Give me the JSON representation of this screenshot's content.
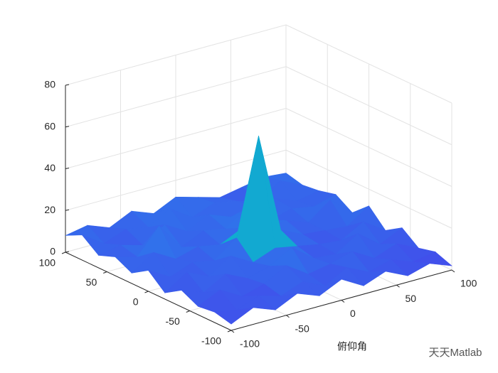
{
  "chart_data": {
    "type": "surface",
    "xlabel": "俯仰角",
    "watermark": "天天Matlab",
    "x": [
      -100,
      -80,
      -60,
      -40,
      -20,
      0,
      20,
      40,
      60,
      80,
      100
    ],
    "y": [
      -100,
      -80,
      -60,
      -40,
      -20,
      0,
      20,
      40,
      60,
      80,
      100
    ],
    "z": [
      [
        3,
        8,
        4,
        9,
        5,
        10,
        4,
        8,
        3,
        6,
        2
      ],
      [
        5,
        3,
        7,
        4,
        8,
        3,
        9,
        4,
        7,
        3,
        5
      ],
      [
        4,
        9,
        3,
        6,
        12,
        5,
        7,
        10,
        4,
        8,
        3
      ],
      [
        8,
        4,
        10,
        5,
        8,
        14,
        6,
        5,
        12,
        4,
        9
      ],
      [
        3,
        10,
        5,
        12,
        6,
        10,
        8,
        6,
        5,
        11,
        4
      ],
      [
        10,
        4,
        8,
        6,
        14,
        60,
        12,
        7,
        6,
        5,
        12
      ],
      [
        5,
        12,
        6,
        9,
        7,
        12,
        8,
        10,
        6,
        14,
        5
      ],
      [
        9,
        6,
        18,
        5,
        10,
        8,
        15,
        6,
        9,
        7,
        10
      ],
      [
        6,
        8,
        5,
        12,
        6,
        11,
        7,
        9,
        10,
        6,
        8
      ],
      [
        12,
        5,
        9,
        7,
        13,
        6,
        10,
        8,
        5,
        12,
        7
      ],
      [
        8,
        10,
        6,
        11,
        7,
        12,
        9,
        6,
        8,
        10,
        9
      ]
    ],
    "xlim": [
      -100,
      100
    ],
    "ylim": [
      -100,
      100
    ],
    "zlim": [
      0,
      80
    ],
    "xticks": [
      -100,
      -50,
      0,
      50,
      100
    ],
    "yticks": [
      -100,
      -50,
      0,
      50,
      100
    ],
    "zticks": [
      0,
      20,
      40,
      60,
      80
    ],
    "grid": true,
    "colormap": "parula"
  }
}
